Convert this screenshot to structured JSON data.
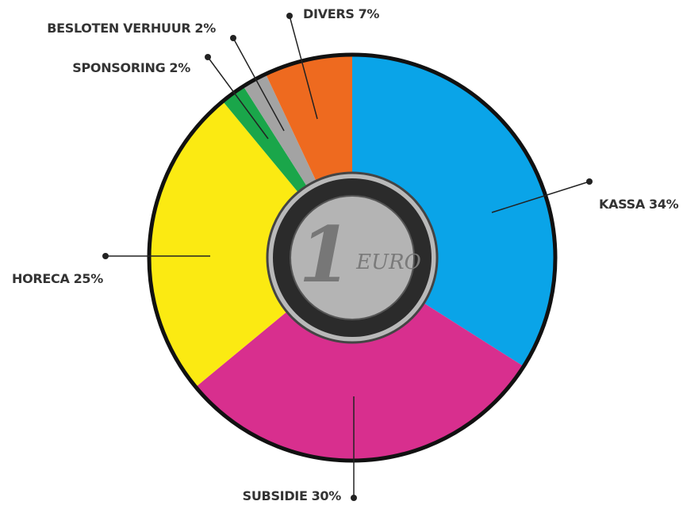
{
  "chart_data": {
    "type": "pie",
    "categories": [
      "KASSA",
      "SUBSIDIE",
      "HORECA",
      "SPONSORING",
      "BESLOTEN VERHUUR",
      "DIVERS"
    ],
    "values": [
      34,
      30,
      25,
      2,
      2,
      7
    ],
    "value_labels": [
      "34%",
      "30%",
      "25%",
      "2%",
      "2%",
      "7%"
    ],
    "colors": [
      "#0aa4e8",
      "#d82f8e",
      "#fbea12",
      "#1aa64a",
      "#a3a3a3",
      "#ee6a1f"
    ],
    "center": {
      "numeral": "1",
      "unit": "EURO"
    }
  }
}
